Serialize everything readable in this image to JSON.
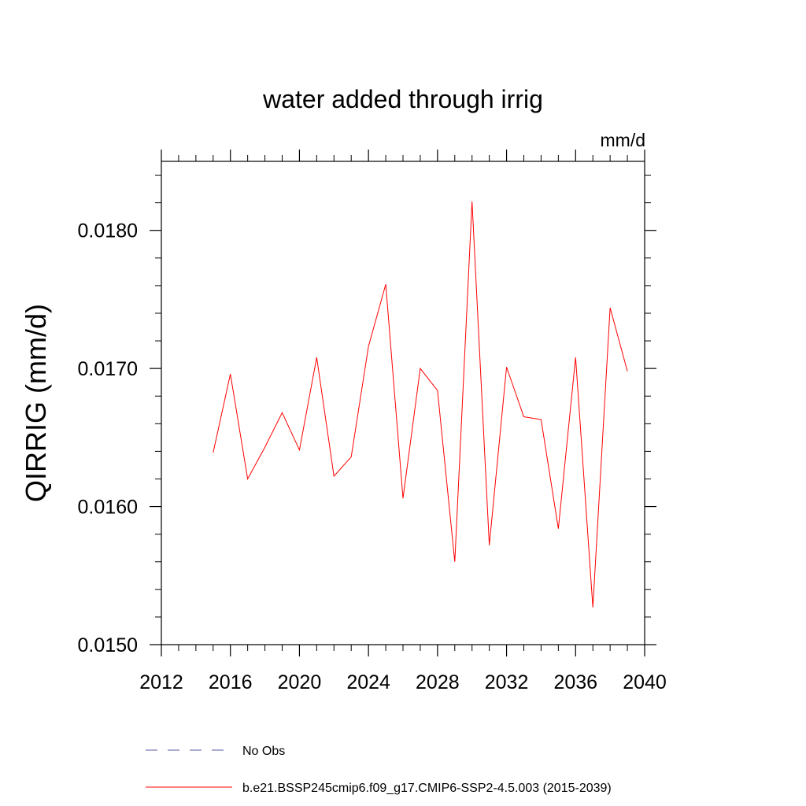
{
  "chart_data": {
    "type": "line",
    "title": "water added through irrig",
    "units_label": "mm/d",
    "ylabel": "QIRRIG  (mm/d)",
    "xlabel": "",
    "xlim": [
      2012,
      2040
    ],
    "ylim": [
      0.015,
      0.0185
    ],
    "x_ticks": [
      2012,
      2016,
      2020,
      2024,
      2028,
      2032,
      2036,
      2040
    ],
    "x_tick_labels": [
      "2012",
      "2016",
      "2020",
      "2024",
      "2028",
      "2032",
      "2036",
      "2040"
    ],
    "y_ticks": [
      0.015,
      0.016,
      0.017,
      0.018
    ],
    "y_tick_labels": [
      "0.0150",
      "0.0160",
      "0.0170",
      "0.0180"
    ],
    "grid": false,
    "legend_position": "bottom",
    "legend": [
      {
        "label": "No Obs",
        "color": "#5a5aa0",
        "style": "dashed"
      },
      {
        "label": "b.e21.BSSP245cmip6.f09_g17.CMIP6-SSP2-4.5.003 (2015-2039)",
        "color": "#ff0000",
        "style": "solid"
      }
    ],
    "series": [
      {
        "name": "b.e21.BSSP245cmip6.f09_g17.CMIP6-SSP2-4.5.003 (2015-2039)",
        "color": "#ff0000",
        "x": [
          2015,
          2016,
          2017,
          2018,
          2019,
          2020,
          2021,
          2022,
          2023,
          2024,
          2025,
          2026,
          2027,
          2028,
          2029,
          2030,
          2031,
          2032,
          2033,
          2034,
          2035,
          2036,
          2037,
          2038,
          2039
        ],
        "y": [
          0.01639,
          0.01696,
          0.0162,
          0.01643,
          0.01668,
          0.01641,
          0.01708,
          0.01622,
          0.01636,
          0.01716,
          0.01761,
          0.01606,
          0.017,
          0.01684,
          0.0156,
          0.01821,
          0.01572,
          0.01701,
          0.01665,
          0.01663,
          0.01584,
          0.01708,
          0.01527,
          0.01744,
          0.01698
        ]
      }
    ]
  }
}
